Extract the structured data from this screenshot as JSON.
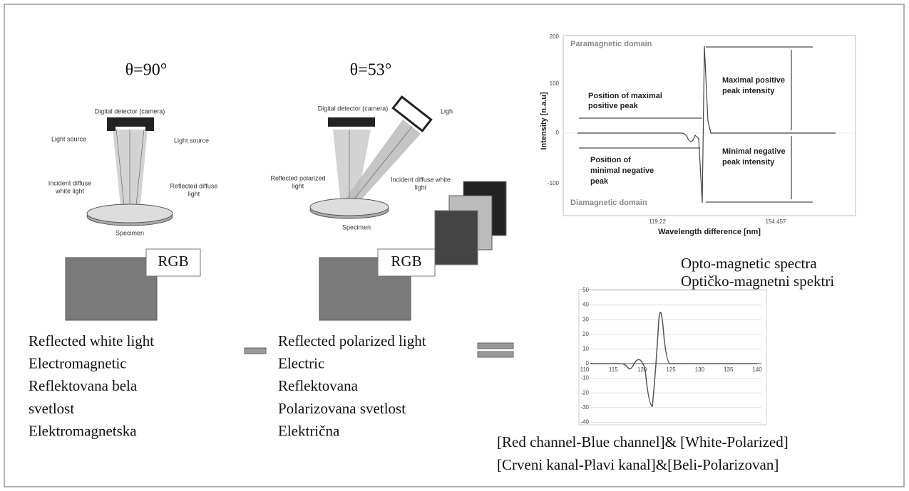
{
  "left_panel": {
    "title": "θ=90°",
    "labels": {
      "detector": "Digital detector (camera)",
      "source_left": "Light source",
      "source_right": "Light source",
      "incident": [
        "Incident diffuse",
        "white light"
      ],
      "reflected": [
        "Reflected diffuse",
        "light"
      ],
      "specimen": "Specimen"
    },
    "box_label": "RGB",
    "caption": [
      "Reflected white light",
      "Electromagnetic",
      "Reflektovana bela",
      "svetlost",
      "Elektromagnetska"
    ]
  },
  "middle_panel": {
    "title": "θ=53°",
    "labels": {
      "detector": "Digital detector (camera)",
      "source": "Ligh",
      "reflected": [
        "Reflected polarized",
        "light"
      ],
      "incident": [
        "Incident diffuse white",
        "light"
      ],
      "specimen": "Specimen"
    },
    "box_label": "RGB",
    "caption": [
      "Reflected polarized light",
      "Electric",
      "Reflektovana",
      "Polarizovana  svetlost",
      "Električna"
    ]
  },
  "spectrum_chart": {
    "y_label": "Intensity [n.a.u]",
    "x_label": "Wavelength difference [nm]",
    "yticks": [
      200,
      100,
      0,
      -100
    ],
    "xticks": [
      119.22,
      154.457
    ],
    "paramagnetic": "Paramagnetic domain",
    "diamagnetic": "Diamagnetic domain",
    "max_position": [
      "Position of maximal",
      "positive peak"
    ],
    "max_intensity": [
      "Maximal positive",
      "peak intensity"
    ],
    "min_position": [
      "Position of",
      "minimal negative",
      "peak"
    ],
    "min_intensity": [
      "Minimal negative",
      "peak intensity"
    ]
  },
  "spectrum_caption": [
    "Opto-magnetic spectra",
    "Optičko-magnetni spektri"
  ],
  "difference_chart": {
    "yticks": [
      50,
      40,
      30,
      20,
      10,
      0,
      -10,
      -20,
      -30,
      -40
    ],
    "xticks": [
      110,
      115,
      120,
      125,
      130,
      135,
      140
    ]
  },
  "bottom_caption": [
    "[Red channel-Blue channel]& [White-Polarized]",
    "[Crveni kanal-Plavi kanal]&[Beli-Polarizovan]"
  ]
}
